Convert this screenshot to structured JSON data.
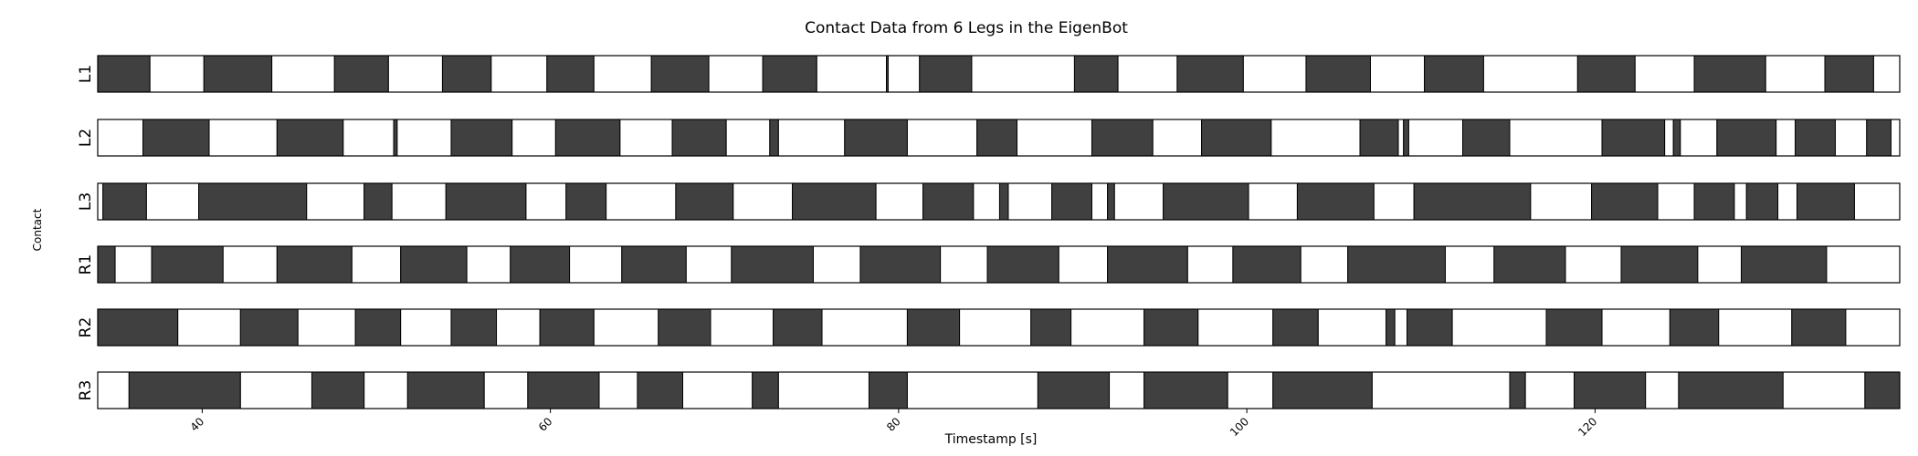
{
  "chart_data": {
    "type": "gantt",
    "title": "Contact Data from 6 Legs in the EigenBot",
    "xlabel": "Timestamp [s]",
    "ylabel": "Contact",
    "xlim": [
      34,
      137.5
    ],
    "xticks": [
      40,
      60,
      80,
      100,
      120
    ],
    "colors": {
      "contact": "#404040",
      "no_contact": "#ffffff"
    },
    "legs": [
      {
        "name": "L1",
        "start_state": 1,
        "changes": [
          37.0,
          40.1,
          44.0,
          47.6,
          50.7,
          53.8,
          56.6,
          59.8,
          62.5,
          65.8,
          69.1,
          72.2,
          75.3,
          79.3,
          79.4,
          81.2,
          84.2,
          90.1,
          92.6,
          96.0,
          99.8,
          103.4,
          107.1,
          110.2,
          113.6,
          119.0,
          122.3,
          125.7,
          129.8,
          133.2,
          136.0,
          138.9
        ]
      },
      {
        "name": "L2",
        "start_state": 0,
        "changes": [
          36.6,
          40.4,
          44.3,
          48.1,
          51.0,
          51.2,
          54.3,
          57.8,
          60.3,
          64.0,
          67.0,
          70.1,
          72.6,
          73.1,
          76.9,
          80.5,
          84.5,
          86.8,
          91.1,
          94.6,
          97.4,
          101.4,
          106.5,
          108.7,
          109.0,
          109.3,
          112.4,
          115.1,
          120.4,
          124.0,
          124.5,
          124.9,
          127.0,
          130.4,
          131.5,
          133.8,
          135.6,
          137.0
        ]
      },
      {
        "name": "L3",
        "start_state": 0,
        "changes": [
          34.3,
          36.8,
          39.8,
          46.0,
          49.3,
          50.9,
          54.0,
          58.6,
          60.9,
          63.2,
          67.2,
          70.5,
          73.9,
          78.7,
          81.4,
          84.3,
          85.8,
          86.3,
          88.8,
          91.1,
          92.0,
          92.4,
          95.2,
          100.1,
          102.9,
          107.3,
          109.6,
          116.3,
          119.8,
          123.6,
          125.7,
          128.0,
          128.7,
          130.5,
          131.6,
          134.9
        ]
      },
      {
        "name": "R1",
        "start_state": 1,
        "changes": [
          35.0,
          37.1,
          41.2,
          44.3,
          48.6,
          51.4,
          55.2,
          57.7,
          61.1,
          64.1,
          67.8,
          70.4,
          75.1,
          77.8,
          82.4,
          85.1,
          89.2,
          92.0,
          96.6,
          99.2,
          103.1,
          105.8,
          111.4,
          114.2,
          118.3,
          121.5,
          125.9,
          128.4,
          133.3,
          137.5
        ]
      },
      {
        "name": "R2",
        "start_state": 1,
        "changes": [
          38.6,
          42.2,
          45.5,
          48.8,
          51.4,
          54.3,
          56.9,
          59.4,
          62.5,
          66.2,
          69.2,
          72.8,
          75.6,
          80.5,
          83.5,
          87.6,
          89.9,
          94.1,
          97.2,
          101.5,
          104.1,
          108.0,
          108.5,
          109.2,
          111.8,
          117.2,
          120.4,
          124.3,
          127.1,
          131.3,
          134.4,
          137.5
        ]
      },
      {
        "name": "R3",
        "start_state": 0,
        "changes": [
          35.8,
          42.2,
          46.3,
          49.3,
          51.8,
          56.2,
          58.7,
          62.8,
          65.0,
          67.6,
          71.6,
          73.1,
          78.3,
          80.5,
          88.0,
          92.1,
          94.1,
          98.9,
          101.5,
          107.2,
          115.1,
          116.0,
          118.8,
          122.9,
          124.8,
          130.8,
          135.5,
          137.5
        ]
      }
    ]
  }
}
